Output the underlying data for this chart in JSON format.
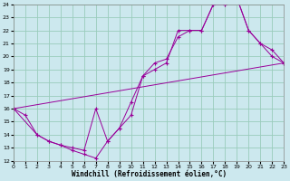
{
  "xlabel": "Windchill (Refroidissement éolien,°C)",
  "background_color": "#cce8ee",
  "grid_color": "#99ccbb",
  "line_color": "#990099",
  "xlim": [
    0,
    23
  ],
  "ylim": [
    12,
    24
  ],
  "xticks": [
    0,
    1,
    2,
    3,
    4,
    5,
    6,
    7,
    8,
    9,
    10,
    11,
    12,
    13,
    14,
    15,
    16,
    17,
    18,
    19,
    20,
    21,
    22,
    23
  ],
  "yticks": [
    12,
    13,
    14,
    15,
    16,
    17,
    18,
    19,
    20,
    21,
    22,
    23,
    24
  ],
  "line1_x": [
    0,
    1,
    2,
    3,
    4,
    5,
    6,
    7,
    8,
    9,
    10,
    11,
    12,
    13,
    14,
    15,
    16,
    17,
    18,
    19,
    20,
    21,
    22,
    23
  ],
  "line1_y": [
    16,
    15.5,
    14,
    13.5,
    13.2,
    12.8,
    12.5,
    12.2,
    13.5,
    14.5,
    16.5,
    18.5,
    19.5,
    19.8,
    21.5,
    22,
    22,
    24,
    24,
    24.5,
    22,
    21,
    20,
    19.5
  ],
  "line2_x": [
    0,
    2,
    3,
    4,
    5,
    6,
    7,
    8,
    9,
    10,
    11,
    12,
    13,
    14,
    15,
    16,
    17,
    18,
    19,
    20,
    21,
    22,
    23
  ],
  "line2_y": [
    16,
    14,
    13.5,
    13.2,
    13,
    12.8,
    16,
    13.5,
    14.5,
    15.5,
    18.5,
    19,
    19.5,
    22,
    22,
    22,
    24,
    24,
    24.5,
    22,
    21,
    20.5,
    19.5
  ],
  "line3_x": [
    0,
    23
  ],
  "line3_y": [
    16,
    19.5
  ],
  "marker": "+"
}
